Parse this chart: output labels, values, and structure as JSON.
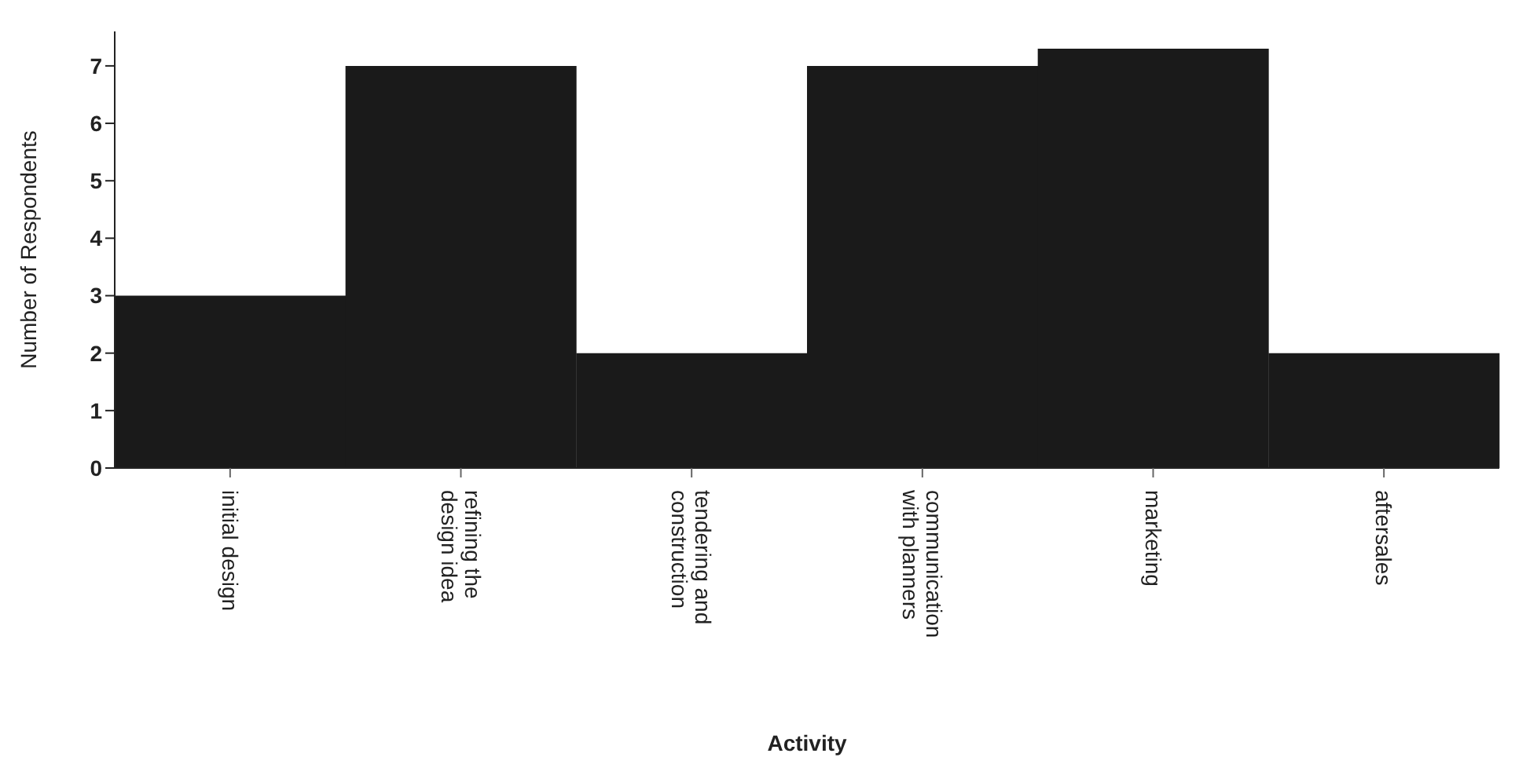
{
  "chart_data": {
    "type": "bar",
    "xlabel": "Activity",
    "ylabel": "Number of Respondents",
    "categories": [
      "initial design",
      "refining the design idea",
      "tendering and construction",
      "communication with planners",
      "marketing",
      "aftersales"
    ],
    "values": [
      3,
      7,
      2,
      7,
      7.3,
      2
    ],
    "color": "#1a1a1a",
    "ylim": [
      0,
      7.6
    ],
    "yticks": [
      0,
      1,
      2,
      3,
      4,
      5,
      6,
      7
    ]
  }
}
